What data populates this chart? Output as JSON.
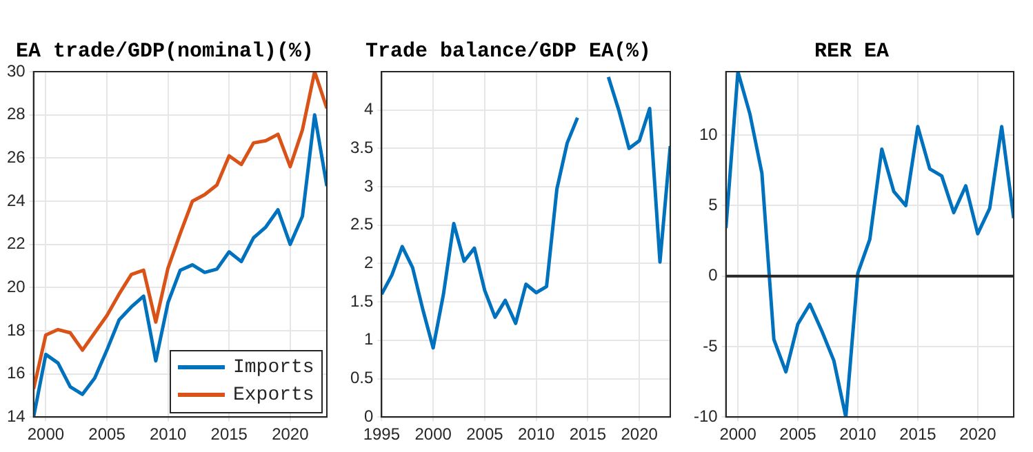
{
  "chart_data": [
    {
      "type": "line",
      "title": "EA trade/GDP(nominal)(%)",
      "x": [
        1999,
        2000,
        2001,
        2002,
        2003,
        2004,
        2005,
        2006,
        2007,
        2008,
        2009,
        2010,
        2011,
        2012,
        2013,
        2014,
        2015,
        2016,
        2017,
        2018,
        2019,
        2020,
        2021,
        2022,
        2023
      ],
      "series": [
        {
          "name": "Imports",
          "color": "#0072bd",
          "values": [
            14.0,
            16.9,
            16.5,
            15.4,
            15.05,
            15.8,
            17.1,
            18.5,
            19.1,
            19.6,
            16.6,
            19.3,
            20.8,
            21.05,
            20.7,
            20.85,
            21.65,
            21.2,
            22.3,
            22.8,
            23.6,
            22.0,
            23.3,
            28.0,
            24.7
          ]
        },
        {
          "name": "Exports",
          "color": "#d95319",
          "values": [
            15.3,
            17.8,
            18.05,
            17.9,
            17.1,
            17.9,
            18.7,
            19.7,
            20.6,
            20.8,
            18.4,
            20.9,
            22.5,
            24.0,
            24.3,
            24.75,
            26.1,
            25.7,
            26.7,
            26.8,
            27.1,
            25.6,
            27.3,
            30.0,
            28.3
          ]
        }
      ],
      "xlim": [
        1999,
        2023
      ],
      "xticks": [
        2000,
        2005,
        2010,
        2015,
        2020
      ],
      "ylim": [
        14,
        30
      ],
      "yticks": [
        14,
        16,
        18,
        20,
        22,
        24,
        26,
        28,
        30
      ],
      "grid": true,
      "legend": "bottom right"
    },
    {
      "type": "line",
      "title": "Trade balance/GDP EA(%)",
      "x": [
        1995,
        1996,
        1997,
        1998,
        1999,
        2000,
        2001,
        2002,
        2003,
        2004,
        2005,
        2006,
        2007,
        2008,
        2009,
        2010,
        2011,
        2012,
        2013,
        2014,
        2015,
        2016,
        2017,
        2018,
        2019,
        2020,
        2021,
        2022,
        2023
      ],
      "series": [
        {
          "color": "#0072bd",
          "values": [
            1.6,
            1.85,
            2.22,
            1.95,
            1.4,
            0.9,
            1.6,
            2.52,
            2.03,
            2.2,
            1.65,
            1.3,
            1.52,
            1.22,
            1.73,
            1.62,
            1.7,
            2.97,
            3.57,
            3.9,
            null,
            null,
            4.43,
            4.0,
            3.5,
            3.6,
            4.02,
            2.02,
            3.53
          ]
        }
      ],
      "xlim": [
        1995,
        2023
      ],
      "xticks": [
        1995,
        2000,
        2005,
        2010,
        2015,
        2020
      ],
      "ylim": [
        0,
        4.5
      ],
      "yticks": [
        0,
        0.5,
        1,
        1.5,
        2,
        2.5,
        3,
        3.5,
        4
      ],
      "grid": true
    },
    {
      "type": "line",
      "title": "RER EA",
      "x": [
        1999,
        2000,
        2001,
        2002,
        2003,
        2004,
        2005,
        2006,
        2007,
        2008,
        2009,
        2010,
        2011,
        2012,
        2013,
        2014,
        2015,
        2016,
        2017,
        2018,
        2019,
        2020,
        2021,
        2022,
        2023
      ],
      "series": [
        {
          "color": "#0072bd",
          "values": [
            3.4,
            14.5,
            11.5,
            7.3,
            -4.5,
            -6.8,
            -3.4,
            -2.0,
            -3.9,
            -6.0,
            -10.0,
            0.2,
            2.6,
            9.0,
            6.0,
            5.0,
            10.6,
            7.6,
            7.1,
            4.5,
            6.4,
            3.0,
            4.8,
            10.6,
            4.1
          ]
        }
      ],
      "xlim": [
        1999,
        2023
      ],
      "xticks": [
        2000,
        2005,
        2010,
        2015,
        2020
      ],
      "ylim": [
        -10,
        14.5
      ],
      "yticks": [
        -10,
        -5,
        0,
        5,
        10
      ],
      "grid": true,
      "ref_lines": [
        {
          "axis": "y",
          "value": 0,
          "color": "#262626"
        }
      ]
    }
  ]
}
